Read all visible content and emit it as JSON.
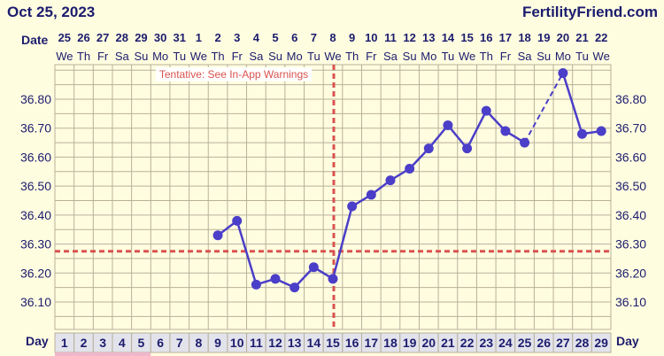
{
  "header": {
    "date": "Oct 25, 2023",
    "brand": "FertilityFriend.com",
    "date_row_label": "Date",
    "day_row_label_left": "Day",
    "day_row_label_right": "Day"
  },
  "warning": "Tentative: See In-App Warnings",
  "colors": {
    "background": "#fffde0",
    "grid": "#b8b09a",
    "line": "#4b3ec8",
    "coverline": "#d9534f",
    "title": "#1c1c6e",
    "menstrual": "#f0b6cc",
    "dayrow": "#e3e3ec"
  },
  "chart_data": {
    "type": "line",
    "dates": [
      "25",
      "26",
      "27",
      "28",
      "29",
      "30",
      "31",
      "1",
      "2",
      "3",
      "4",
      "5",
      "6",
      "7",
      "8",
      "9",
      "10",
      "11",
      "12",
      "13",
      "14",
      "15",
      "16",
      "17",
      "18",
      "19",
      "20",
      "21",
      "22"
    ],
    "weekdays": [
      "We",
      "Th",
      "Fr",
      "Sa",
      "Su",
      "Mo",
      "Tu",
      "We",
      "Th",
      "Fr",
      "Sa",
      "Su",
      "Mo",
      "Tu",
      "We",
      "Th",
      "Fr",
      "Sa",
      "Su",
      "Mo",
      "Tu",
      "We",
      "Th",
      "Fr",
      "Sa",
      "Su",
      "Mo",
      "Tu",
      "We"
    ],
    "cycle_days": [
      1,
      2,
      3,
      4,
      5,
      6,
      7,
      8,
      9,
      10,
      11,
      12,
      13,
      14,
      15,
      16,
      17,
      18,
      19,
      20,
      21,
      22,
      23,
      24,
      25,
      26,
      27,
      28,
      29
    ],
    "menstrual_days": [
      1,
      2,
      3,
      4,
      5
    ],
    "temperatures": [
      null,
      null,
      null,
      null,
      null,
      null,
      null,
      null,
      36.33,
      36.38,
      36.16,
      36.18,
      36.15,
      36.22,
      36.18,
      36.43,
      36.47,
      36.52,
      36.56,
      36.63,
      36.71,
      36.63,
      36.76,
      36.69,
      36.65,
      null,
      36.89,
      36.68,
      36.69
    ],
    "dashed_gap": [
      25,
      27
    ],
    "y_ticks": [
      "36.10",
      "36.20",
      "36.30",
      "36.40",
      "36.50",
      "36.60",
      "36.70",
      "36.80"
    ],
    "coverline": 36.275,
    "ovulation_day": 15,
    "ylim": [
      36.0,
      36.95
    ]
  }
}
